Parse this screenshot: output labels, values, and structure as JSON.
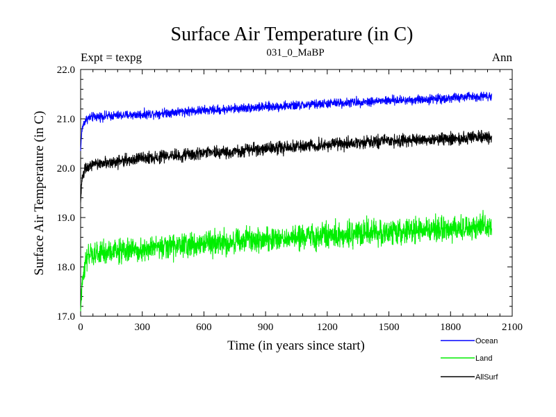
{
  "chart_data": {
    "type": "line",
    "title": "Surface Air Temperature (in C)",
    "subtitle": "031_0_MaBP",
    "left_annotation": "Expt = texpg",
    "right_annotation": "Ann",
    "xlabel": "Time (in years since start)",
    "ylabel": "Surface Air Temperature (in C)",
    "xlim": [
      0,
      2100
    ],
    "ylim": [
      17.0,
      22.0
    ],
    "x_ticks": [
      0,
      300,
      600,
      900,
      1200,
      1500,
      1800,
      2100
    ],
    "x_tick_labels": [
      "0",
      "300",
      "600",
      "900",
      "1200",
      "1500",
      "1800",
      "2100"
    ],
    "y_ticks": [
      17.0,
      18.0,
      19.0,
      20.0,
      21.0,
      22.0
    ],
    "y_tick_labels": [
      "17.0",
      "18.0",
      "19.0",
      "20.0",
      "21.0",
      "22.0"
    ],
    "legend_position": "bottom-right",
    "series": [
      {
        "name": "Ocean",
        "color": "#0000ff",
        "noise": 0.08,
        "x": [
          0,
          5,
          10,
          20,
          30,
          50,
          100,
          200,
          300,
          400,
          500,
          600,
          700,
          800,
          900,
          1000,
          1100,
          1200,
          1300,
          1400,
          1500,
          1600,
          1700,
          1800,
          1900,
          2000
        ],
        "values": [
          20.35,
          20.7,
          20.85,
          20.95,
          21.0,
          21.03,
          21.05,
          21.07,
          21.09,
          21.12,
          21.15,
          21.17,
          21.19,
          21.22,
          21.24,
          21.26,
          21.28,
          21.31,
          21.33,
          21.35,
          21.37,
          21.38,
          21.4,
          21.42,
          21.45,
          21.47
        ]
      },
      {
        "name": "Land",
        "color": "#00ee00",
        "noise": 0.22,
        "x": [
          0,
          5,
          10,
          20,
          30,
          50,
          100,
          200,
          300,
          400,
          500,
          600,
          700,
          800,
          900,
          1000,
          1100,
          1200,
          1300,
          1400,
          1500,
          1600,
          1700,
          1800,
          1900,
          2000
        ],
        "values": [
          17.1,
          17.5,
          17.8,
          18.05,
          18.15,
          18.22,
          18.28,
          18.32,
          18.36,
          18.4,
          18.44,
          18.47,
          18.5,
          18.53,
          18.56,
          18.59,
          18.61,
          18.64,
          18.66,
          18.69,
          18.71,
          18.73,
          18.75,
          18.77,
          18.8,
          18.83
        ]
      },
      {
        "name": "AllSurf",
        "color": "#000000",
        "noise": 0.11,
        "x": [
          0,
          5,
          10,
          20,
          30,
          50,
          100,
          200,
          300,
          400,
          500,
          600,
          700,
          800,
          900,
          1000,
          1100,
          1200,
          1300,
          1400,
          1500,
          1600,
          1700,
          1800,
          1900,
          2000
        ],
        "values": [
          19.3,
          19.7,
          19.85,
          19.95,
          20.0,
          20.05,
          20.1,
          20.15,
          20.19,
          20.23,
          20.27,
          20.3,
          20.33,
          20.36,
          20.39,
          20.42,
          20.45,
          20.47,
          20.5,
          20.52,
          20.54,
          20.56,
          20.58,
          20.6,
          20.62,
          20.64
        ]
      }
    ]
  }
}
